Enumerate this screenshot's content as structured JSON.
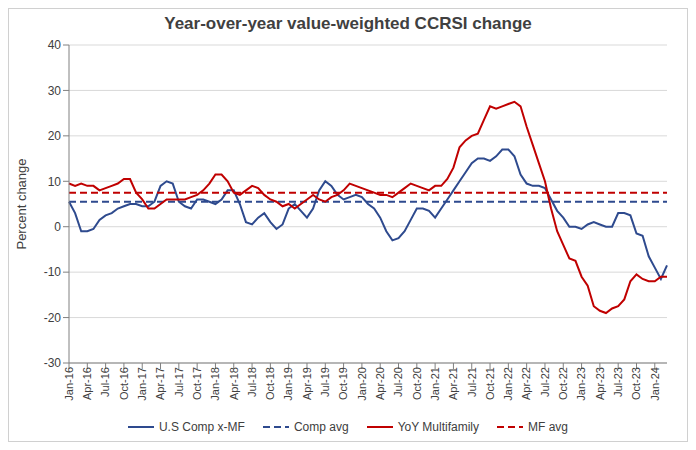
{
  "chart_data": {
    "type": "line",
    "title": "Year-over-year value-weighted CCRSI change",
    "y_label": "Percent change",
    "categories": [
      "Jan-16",
      null,
      null,
      "Apr-16",
      null,
      null,
      "Jul-16",
      null,
      null,
      "Oct-16",
      null,
      null,
      "Jan-17",
      null,
      null,
      "Apr-17",
      null,
      null,
      "Jul-17",
      null,
      null,
      "Oct-17",
      null,
      null,
      "Jan-18",
      null,
      null,
      "Apr-18",
      null,
      null,
      "Jul-18",
      null,
      null,
      "Oct-18",
      null,
      null,
      "Jan-19",
      null,
      null,
      "Apr-19",
      null,
      null,
      "Jul-19",
      null,
      null,
      "Oct-19",
      null,
      null,
      "Jan-20",
      null,
      null,
      "Apr-20",
      null,
      null,
      "Jul-20",
      null,
      null,
      "Oct-20",
      null,
      null,
      "Jan-21",
      null,
      null,
      "Apr-21",
      null,
      null,
      "Jul-21",
      null,
      null,
      "Oct-21",
      null,
      null,
      "Jan-22",
      null,
      null,
      "Apr-22",
      null,
      null,
      "Jul-22",
      null,
      null,
      "Oct-22",
      null,
      null,
      "Jan-23",
      null,
      null,
      "Apr-23",
      null,
      null,
      "Jul-23",
      null,
      null,
      "Oct-23",
      null,
      null,
      "Jan-24",
      null,
      null
    ],
    "series": [
      {
        "name": "U.S Comp x-MF",
        "color": "#2e4a8e",
        "line_style": "solid",
        "values": [
          5.5,
          3,
          -1,
          -1,
          -0.5,
          1.5,
          2.5,
          3,
          4,
          4.5,
          5,
          5,
          4.5,
          4.5,
          5.5,
          9,
          10,
          9.5,
          5.5,
          4.5,
          4,
          6,
          6,
          5.5,
          5,
          6,
          8,
          8,
          5,
          1,
          0.5,
          2,
          3,
          1,
          -0.5,
          0.5,
          4,
          5,
          3.5,
          2,
          4,
          8,
          10,
          9,
          7,
          6,
          6.5,
          7,
          6.5,
          5,
          4,
          2,
          -1,
          -3,
          -2.5,
          -1,
          1.5,
          4,
          4,
          3.5,
          2,
          4,
          6,
          8,
          10,
          12,
          14,
          15,
          15,
          14.5,
          15.5,
          17,
          17,
          15.5,
          11.5,
          9.5,
          9,
          9,
          8.5,
          6,
          3.5,
          2,
          0,
          0,
          -0.5,
          0.5,
          1,
          0.5,
          0,
          0,
          3,
          3,
          2.5,
          -1.5,
          -2,
          -6.5,
          -9,
          -11.5,
          -8.5
        ]
      },
      {
        "name": "Comp avg",
        "color": "#2e4a8e",
        "line_style": "dashed",
        "values": [
          5.5,
          5.5,
          5.5,
          5.5,
          5.5,
          5.5,
          5.5,
          5.5,
          5.5,
          5.5,
          5.5,
          5.5,
          5.5,
          5.5,
          5.5,
          5.5,
          5.5,
          5.5,
          5.5,
          5.5,
          5.5,
          5.5,
          5.5,
          5.5,
          5.5,
          5.5,
          5.5,
          5.5,
          5.5,
          5.5,
          5.5,
          5.5,
          5.5,
          5.5,
          5.5,
          5.5,
          5.5,
          5.5,
          5.5,
          5.5,
          5.5,
          5.5,
          5.5,
          5.5,
          5.5,
          5.5,
          5.5,
          5.5,
          5.5,
          5.5,
          5.5,
          5.5,
          5.5,
          5.5,
          5.5,
          5.5,
          5.5,
          5.5,
          5.5,
          5.5,
          5.5,
          5.5,
          5.5,
          5.5,
          5.5,
          5.5,
          5.5,
          5.5,
          5.5,
          5.5,
          5.5,
          5.5,
          5.5,
          5.5,
          5.5,
          5.5,
          5.5,
          5.5,
          5.5,
          5.5,
          5.5,
          5.5,
          5.5,
          5.5,
          5.5,
          5.5,
          5.5,
          5.5,
          5.5,
          5.5,
          5.5,
          5.5,
          5.5,
          5.5,
          5.5,
          5.5,
          5.5,
          5.5,
          5.5
        ]
      },
      {
        "name": "YoY Multifamily",
        "color": "#c00000",
        "line_style": "solid",
        "values": [
          9.5,
          9,
          9.5,
          9,
          9,
          8,
          8.5,
          9,
          9.5,
          10.5,
          10.5,
          7.5,
          6,
          4,
          4,
          5,
          6,
          6,
          6,
          6,
          6.5,
          7,
          8,
          9.5,
          11.5,
          11.5,
          10,
          7.5,
          7,
          8,
          9,
          8.5,
          7,
          6,
          5.5,
          4.5,
          5,
          4,
          5,
          6,
          7,
          6,
          5.5,
          6.5,
          7,
          8,
          9.5,
          9,
          8.5,
          8,
          7.5,
          7,
          7,
          6.5,
          7.5,
          8.5,
          9.5,
          9,
          8.5,
          8,
          9,
          9,
          10.5,
          13,
          17.5,
          19,
          20,
          20.5,
          23.5,
          26.5,
          26,
          26.5,
          27,
          27.5,
          26.5,
          22,
          18,
          14,
          10,
          4,
          -1,
          -4,
          -7,
          -7.5,
          -11,
          -13,
          -17.5,
          -18.5,
          -19,
          -18,
          -17.5,
          -16,
          -12,
          -10.5,
          -11.5,
          -12,
          -12,
          -11,
          -11
        ]
      },
      {
        "name": "MF avg",
        "color": "#c00000",
        "line_style": "dashed",
        "values": [
          7.5,
          7.5,
          7.5,
          7.5,
          7.5,
          7.5,
          7.5,
          7.5,
          7.5,
          7.5,
          7.5,
          7.5,
          7.5,
          7.5,
          7.5,
          7.5,
          7.5,
          7.5,
          7.5,
          7.5,
          7.5,
          7.5,
          7.5,
          7.5,
          7.5,
          7.5,
          7.5,
          7.5,
          7.5,
          7.5,
          7.5,
          7.5,
          7.5,
          7.5,
          7.5,
          7.5,
          7.5,
          7.5,
          7.5,
          7.5,
          7.5,
          7.5,
          7.5,
          7.5,
          7.5,
          7.5,
          7.5,
          7.5,
          7.5,
          7.5,
          7.5,
          7.5,
          7.5,
          7.5,
          7.5,
          7.5,
          7.5,
          7.5,
          7.5,
          7.5,
          7.5,
          7.5,
          7.5,
          7.5,
          7.5,
          7.5,
          7.5,
          7.5,
          7.5,
          7.5,
          7.5,
          7.5,
          7.5,
          7.5,
          7.5,
          7.5,
          7.5,
          7.5,
          7.5,
          7.5,
          7.5,
          7.5,
          7.5,
          7.5,
          7.5,
          7.5,
          7.5,
          7.5,
          7.5,
          7.5,
          7.5,
          7.5,
          7.5,
          7.5,
          7.5,
          7.5,
          7.5,
          7.5,
          7.5
        ]
      }
    ],
    "ylim": [
      -30,
      40
    ],
    "yticks": [
      -30,
      -20,
      -10,
      0,
      10,
      20,
      30,
      40
    ],
    "grid": true,
    "legend": "bottom"
  }
}
